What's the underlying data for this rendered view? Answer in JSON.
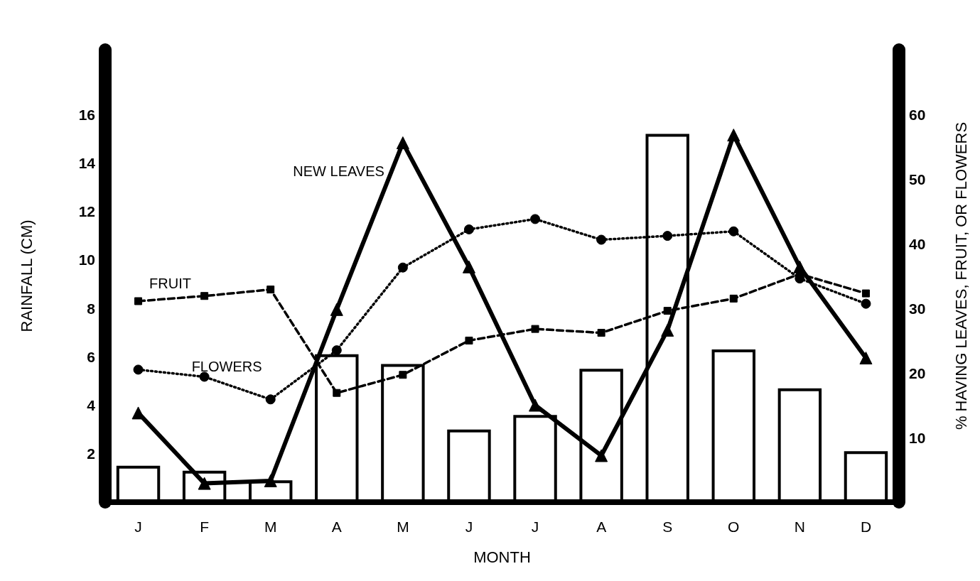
{
  "chart_data": {
    "type": "bar",
    "xlabel": "MONTH",
    "ylabel": "RAINFALL (CM)",
    "y2label": "% HAVING LEAVES, FRUIT, OR FLOWERS",
    "categories": [
      "J",
      "F",
      "M",
      "A",
      "M",
      "J",
      "J",
      "A",
      "S",
      "O",
      "N",
      "D"
    ],
    "series": [
      {
        "color": "#000000",
        "values": [
          1.5,
          1.3,
          0.9,
          6.1,
          5.7,
          3.0,
          3.6,
          5.5,
          15.2,
          6.3,
          4.7,
          2.1
        ]
      },
      {
        "type": "line",
        "name": "NEW LEAVES",
        "axis": "y2",
        "color": "#000000",
        "marker": "triangle",
        "line_style": "solid",
        "values": [
          13.8,
          2.9,
          3.3,
          29.8,
          55.6,
          36.4,
          15.0,
          7.2,
          26.6,
          56.8,
          36.4,
          22.3
        ]
      },
      {
        "type": "line",
        "name": "FRUIT",
        "axis": "y2",
        "color": "#000000",
        "marker": "square",
        "line_style": "dashed",
        "values": [
          31.1,
          31.9,
          32.9,
          16.9,
          19.7,
          25.0,
          26.8,
          26.2,
          29.6,
          31.5,
          35.3,
          32.3
        ]
      },
      {
        "type": "line",
        "name": "FLOWERS",
        "axis": "y2",
        "color": "#000000",
        "marker": "circle",
        "line_style": "dotted",
        "values": [
          20.5,
          19.4,
          15.9,
          23.5,
          36.3,
          42.2,
          43.8,
          40.6,
          41.2,
          41.9,
          34.6,
          30.7
        ]
      }
    ],
    "ylim": [
      0,
      18.67
    ],
    "yticks": [
      2,
      4,
      6,
      8,
      10,
      12,
      14,
      16
    ],
    "y2lim": [
      0,
      70
    ],
    "y2ticks": [
      10,
      20,
      30,
      40,
      50,
      60
    ]
  }
}
